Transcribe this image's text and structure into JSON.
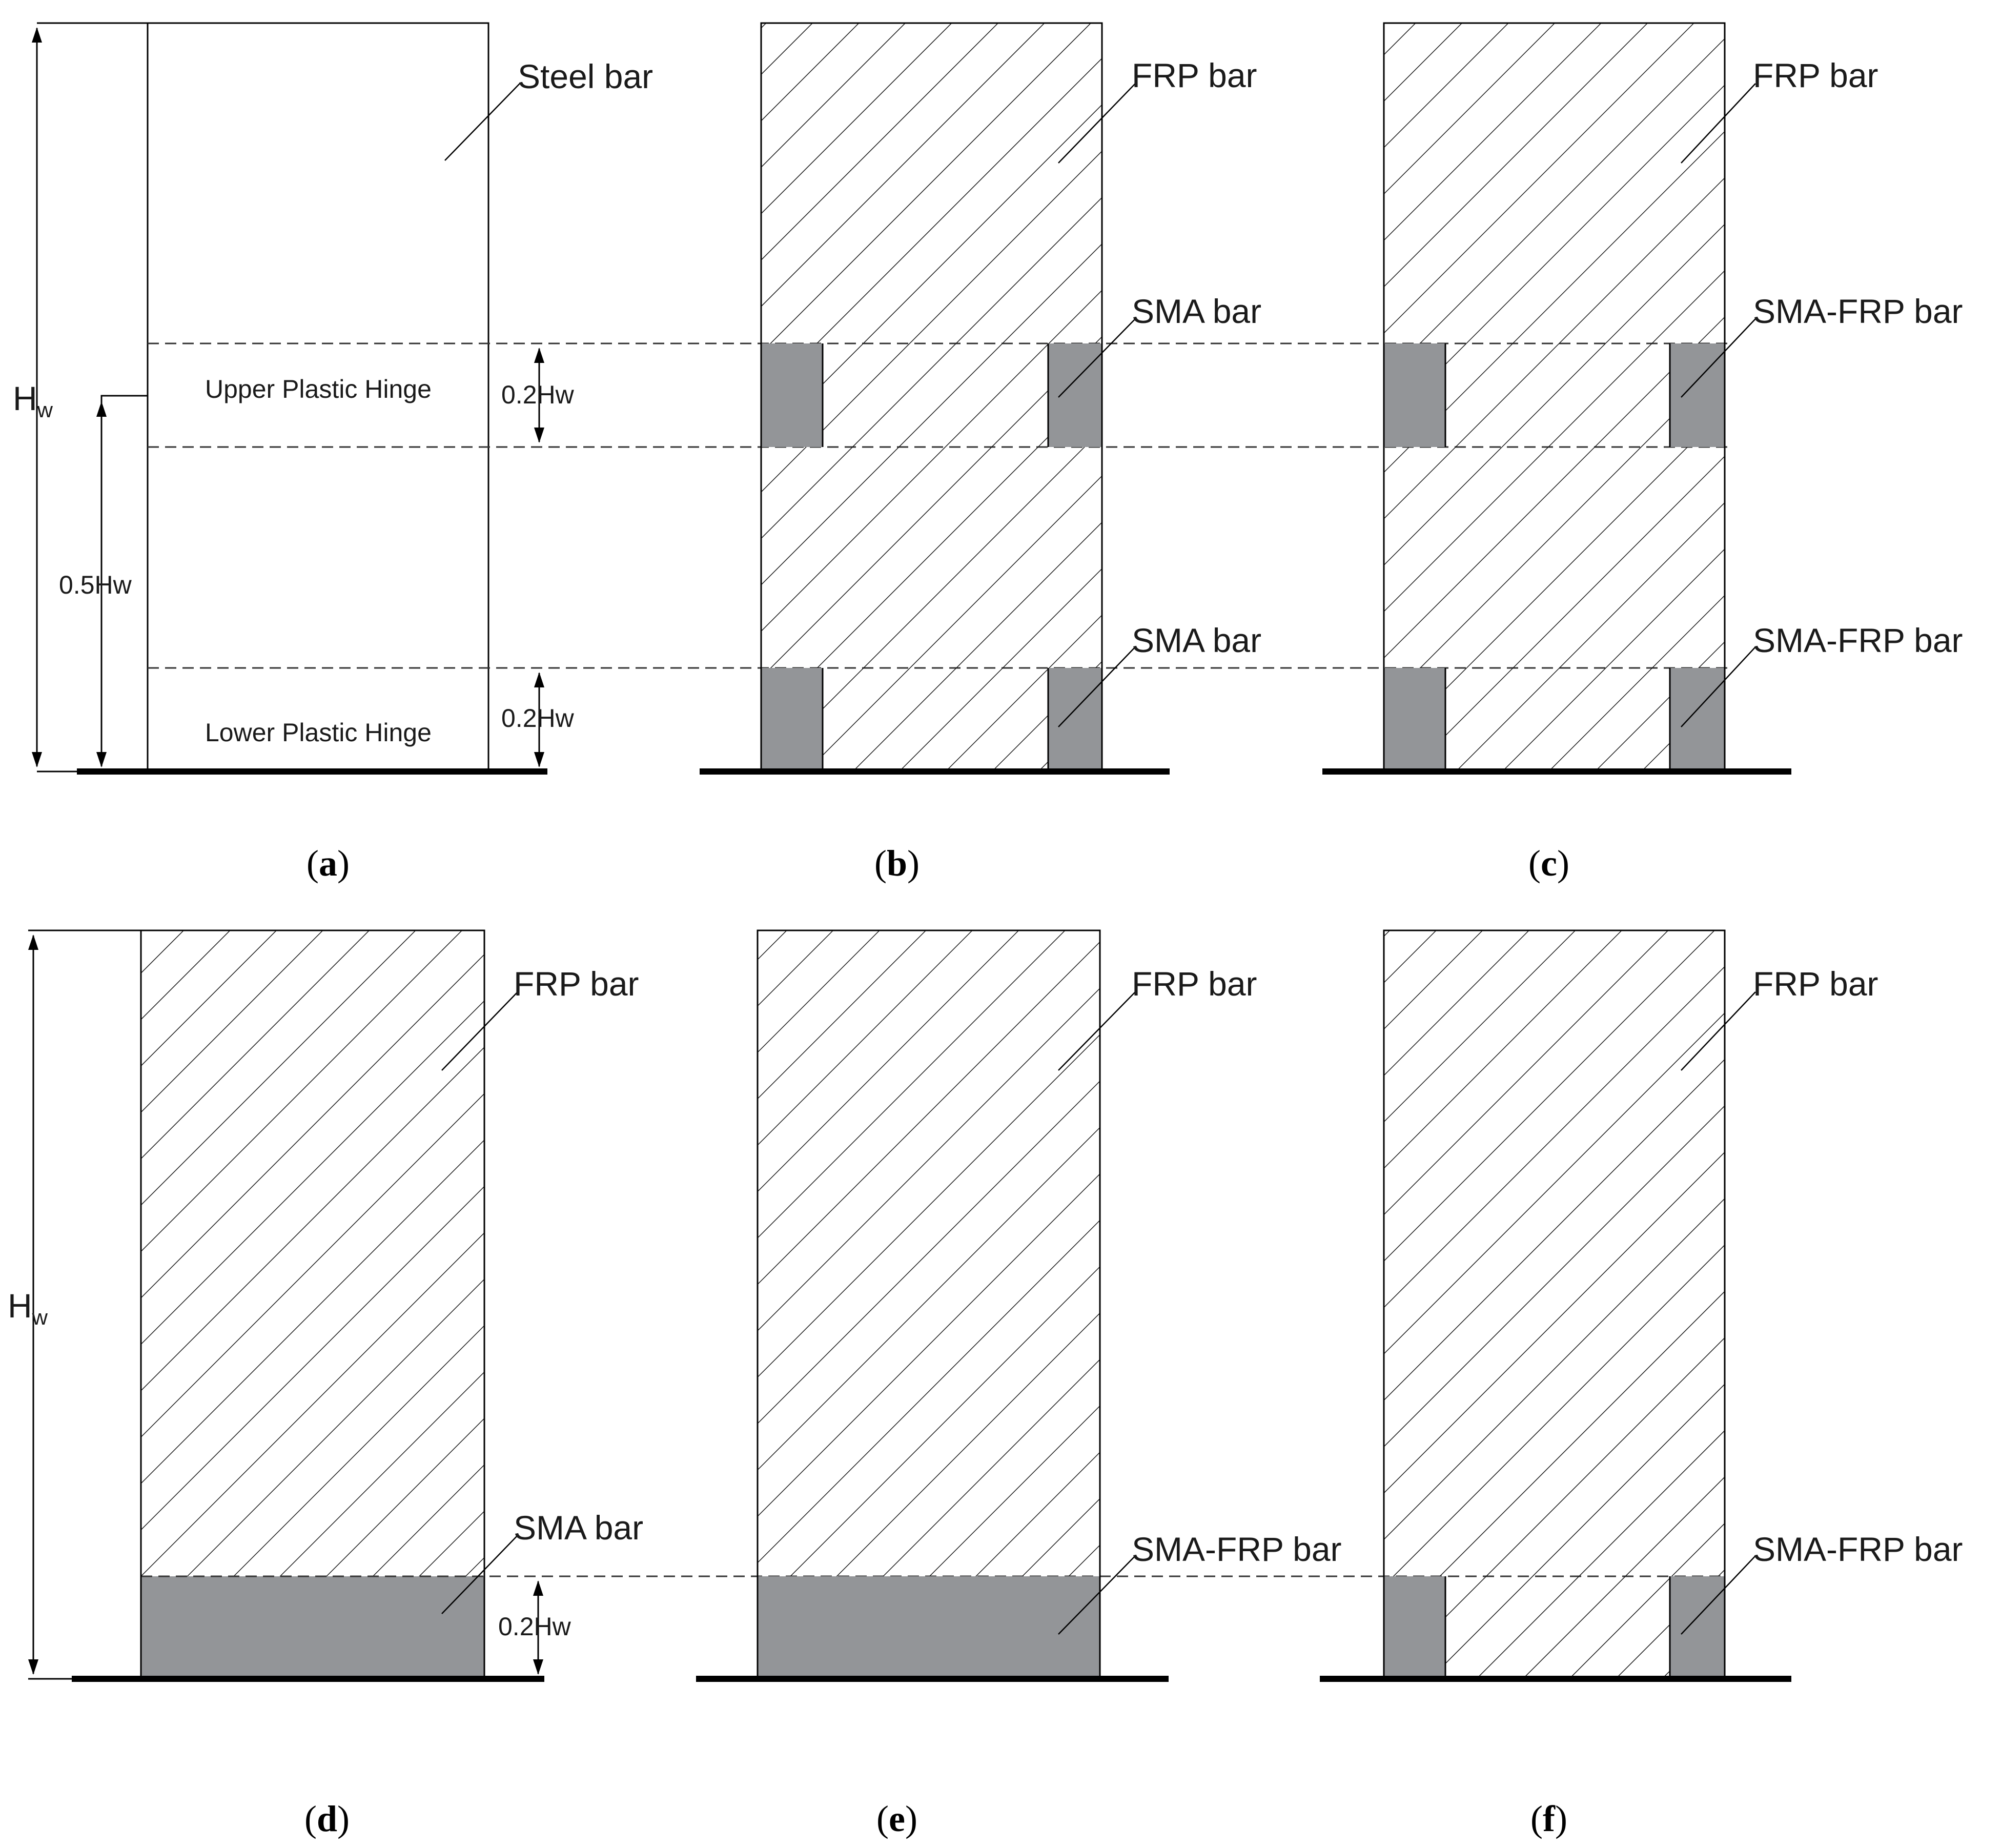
{
  "colors": {
    "sma_fill": "#939598",
    "outline": "#000000",
    "hatch": "#1a1a1a"
  },
  "dimensions": {
    "total_height": "H",
    "total_height_sub": "w",
    "half_height": "0.5Hw",
    "hinge_height": "0.2Hw"
  },
  "panels": {
    "a": {
      "caption": "a",
      "labels": {
        "steel": "Steel bar",
        "upper_hinge": "Upper Plastic Hinge",
        "lower_hinge": "Lower Plastic Hinge"
      }
    },
    "b": {
      "caption": "b",
      "labels": {
        "frp": "FRP bar",
        "sma_upper": "SMA bar",
        "sma_lower": "SMA bar"
      }
    },
    "c": {
      "caption": "c",
      "labels": {
        "frp": "FRP bar",
        "smafrp_upper": "SMA-FRP bar",
        "smafrp_lower": "SMA-FRP bar"
      }
    },
    "d": {
      "caption": "d",
      "labels": {
        "frp": "FRP bar",
        "sma": "SMA bar"
      }
    },
    "e": {
      "caption": "e",
      "labels": {
        "frp": "FRP bar",
        "smafrp": "SMA-FRP bar"
      }
    },
    "f": {
      "caption": "f",
      "labels": {
        "frp": "FRP bar",
        "smafrp": "SMA-FRP bar"
      }
    }
  }
}
